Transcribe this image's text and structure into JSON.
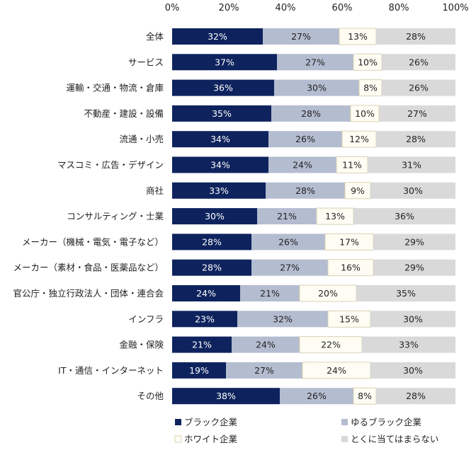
{
  "chart_data": {
    "type": "bar",
    "orientation": "horizontal",
    "stacked": true,
    "xlim": [
      0,
      100
    ],
    "xticks": [
      "0%",
      "20%",
      "40%",
      "60%",
      "80%",
      "100%"
    ],
    "categories": [
      "全体",
      "サービス",
      "運輸・交通・物流・倉庫",
      "不動産・建設・設備",
      "流通・小売",
      "マスコミ・広告・デザイン",
      "商社",
      "コンサルティング・士業",
      "メーカー（機械・電気・電子など）",
      "メーカー（素材・食品・医薬品など）",
      "官公庁・独立行政法人・団体・連合会",
      "インフラ",
      "金融・保険",
      "IT・通信・インターネット",
      "その他"
    ],
    "series": [
      {
        "name": "ブラック企業",
        "color": "#0e235e",
        "label_color": "#ffffff",
        "values": [
          32,
          37,
          36,
          35,
          34,
          34,
          33,
          30,
          28,
          28,
          24,
          23,
          21,
          19,
          38
        ]
      },
      {
        "name": "ゆるブラック企業",
        "color": "#b4bcd0",
        "label_color": "#222222",
        "values": [
          27,
          27,
          30,
          28,
          26,
          24,
          28,
          21,
          26,
          27,
          21,
          32,
          24,
          27,
          26
        ]
      },
      {
        "name": "ホワイト企業",
        "color": "#fffdf3",
        "border": "#d9d2b4",
        "label_color": "#222222",
        "values": [
          13,
          10,
          8,
          10,
          12,
          11,
          9,
          13,
          17,
          16,
          20,
          15,
          22,
          24,
          8
        ]
      },
      {
        "name": "とくに当てはまらない",
        "color": "#d9d9d9",
        "label_color": "#222222",
        "values": [
          28,
          26,
          26,
          27,
          28,
          31,
          30,
          36,
          29,
          29,
          35,
          30,
          33,
          30,
          28
        ]
      }
    ],
    "legend_position": "bottom"
  }
}
